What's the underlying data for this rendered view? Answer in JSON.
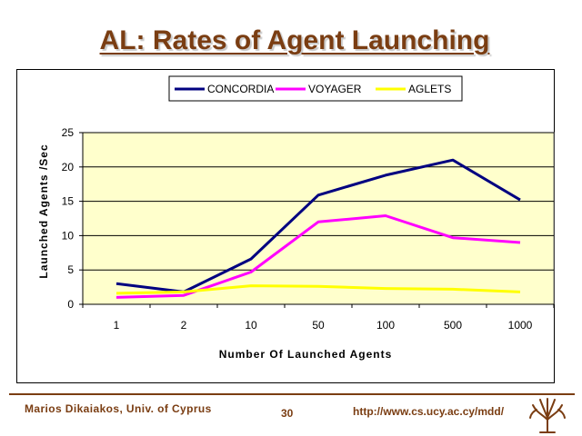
{
  "slide": {
    "title": "AL: Rates of Agent Launching",
    "footer_author": "Marios Dikaiakos, Univ. of Cyprus",
    "page_number": "30",
    "footer_url": "http://www.cs.ucy.ac.cy/mdd/"
  },
  "chart_data": {
    "type": "line",
    "xlabel": "Number Of Launched Agents",
    "ylabel": "Launched Agents /Sec",
    "categories": [
      "1",
      "2",
      "10",
      "50",
      "100",
      "500",
      "1000"
    ],
    "ylim": [
      0,
      25
    ],
    "yticks": [
      0,
      5,
      10,
      15,
      20,
      25
    ],
    "grid": true,
    "legend_position": "top",
    "plot_background": "#ffffcc",
    "series": [
      {
        "name": "CONCORDIA",
        "color": "#000080",
        "values": [
          3.0,
          1.8,
          6.6,
          15.9,
          18.8,
          21.0,
          15.2
        ]
      },
      {
        "name": "VOYAGER",
        "color": "#ff00ff",
        "values": [
          1.0,
          1.3,
          4.7,
          12.0,
          12.9,
          9.7,
          9.0
        ]
      },
      {
        "name": "AGLETS",
        "color": "#ffff00",
        "values": [
          1.6,
          1.8,
          2.7,
          2.6,
          2.3,
          2.2,
          1.8
        ]
      }
    ]
  }
}
